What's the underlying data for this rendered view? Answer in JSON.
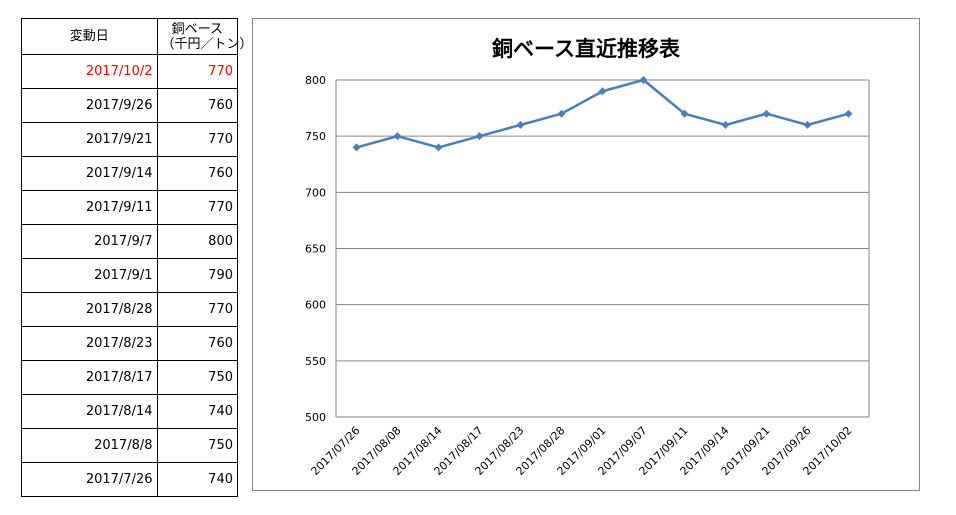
{
  "table": {
    "header_date": "変動日",
    "header_value_line1": "銅ベース",
    "header_value_line2": "（千円／トン）",
    "rows": [
      {
        "date": "2017/10/2",
        "value": "770"
      },
      {
        "date": "2017/9/26",
        "value": "760"
      },
      {
        "date": "2017/9/21",
        "value": "770"
      },
      {
        "date": "2017/9/14",
        "value": "760"
      },
      {
        "date": "2017/9/11",
        "value": "770"
      },
      {
        "date": "2017/9/7",
        "value": "800"
      },
      {
        "date": "2017/9/1",
        "value": "790"
      },
      {
        "date": "2017/8/28",
        "value": "770"
      },
      {
        "date": "2017/8/23",
        "value": "760"
      },
      {
        "date": "2017/8/17",
        "value": "750"
      },
      {
        "date": "2017/8/14",
        "value": "740"
      },
      {
        "date": "2017/8/8",
        "value": "750"
      },
      {
        "date": "2017/7/26",
        "value": "740"
      }
    ],
    "highlight_color": "#ff0000"
  },
  "chart_data": {
    "type": "line",
    "title": "銅ベース直近推移表",
    "xlabel": "",
    "ylabel": "",
    "categories": [
      "2017/07/26",
      "2017/08/08",
      "2017/08/14",
      "2017/08/17",
      "2017/08/23",
      "2017/08/28",
      "2017/09/01",
      "2017/09/07",
      "2017/09/11",
      "2017/09/14",
      "2017/09/21",
      "2017/09/26",
      "2017/10/02"
    ],
    "values": [
      740,
      750,
      740,
      750,
      760,
      770,
      790,
      800,
      770,
      760,
      770,
      760,
      770
    ],
    "ylim": [
      500,
      800
    ],
    "yticks": [
      500,
      550,
      600,
      650,
      700,
      750,
      800
    ],
    "grid": true,
    "legend": false,
    "line_color": "#4a7ebb"
  }
}
